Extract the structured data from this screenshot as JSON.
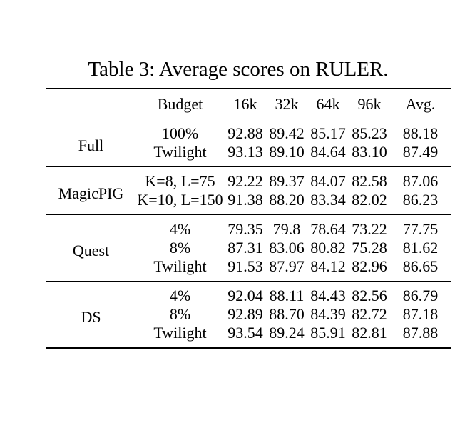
{
  "title": "Table 3: Average scores on RULER.",
  "table": {
    "columns": [
      "Budget",
      "16k",
      "32k",
      "64k",
      "96k",
      "Avg."
    ],
    "groups": [
      {
        "name": "Full",
        "rows": [
          {
            "budget": "100%",
            "budget_bold": false,
            "values": [
              "92.88",
              "89.42",
              "85.17",
              "85.23",
              "88.18"
            ],
            "bold": [
              false,
              false,
              false,
              false,
              false
            ]
          },
          {
            "budget": "Twilight",
            "budget_bold": true,
            "values": [
              "93.13",
              "89.10",
              "84.64",
              "83.10",
              "87.49"
            ],
            "bold": [
              false,
              false,
              false,
              false,
              false
            ]
          }
        ]
      },
      {
        "name": "MagicPIG",
        "rows": [
          {
            "budget": "K=8, L=75",
            "budget_bold": false,
            "values": [
              "92.22",
              "89.37",
              "84.07",
              "82.58",
              "87.06"
            ],
            "bold": [
              false,
              true,
              false,
              false,
              false
            ]
          },
          {
            "budget": "K=10, L=150",
            "budget_bold": false,
            "values": [
              "91.38",
              "88.20",
              "83.34",
              "82.02",
              "86.23"
            ],
            "bold": [
              false,
              false,
              false,
              false,
              false
            ]
          }
        ]
      },
      {
        "name": "Quest",
        "rows": [
          {
            "budget": "4%",
            "budget_bold": false,
            "values": [
              "79.35",
              "79.8",
              "78.64",
              "73.22",
              "77.75"
            ],
            "bold": [
              false,
              false,
              false,
              false,
              false
            ]
          },
          {
            "budget": "8%",
            "budget_bold": false,
            "values": [
              "87.31",
              "83.06",
              "80.82",
              "75.28",
              "81.62"
            ],
            "bold": [
              false,
              false,
              false,
              false,
              false
            ]
          },
          {
            "budget": "Twilight",
            "budget_bold": true,
            "values": [
              "91.53",
              "87.97",
              "84.12",
              "82.96",
              "86.65"
            ],
            "bold": [
              false,
              false,
              false,
              true,
              false
            ]
          }
        ]
      },
      {
        "name": "DS",
        "rows": [
          {
            "budget": "4%",
            "budget_bold": false,
            "values": [
              "92.04",
              "88.11",
              "84.43",
              "82.56",
              "86.79"
            ],
            "bold": [
              false,
              false,
              false,
              false,
              false
            ]
          },
          {
            "budget": "8%",
            "budget_bold": false,
            "values": [
              "92.89",
              "88.70",
              "84.39",
              "82.72",
              "87.18"
            ],
            "bold": [
              false,
              false,
              false,
              false,
              false
            ]
          },
          {
            "budget": "Twilight",
            "budget_bold": true,
            "values": [
              "93.54",
              "89.24",
              "85.91",
              "82.81",
              "87.88"
            ],
            "bold": [
              true,
              false,
              true,
              false,
              true
            ]
          }
        ]
      }
    ]
  }
}
